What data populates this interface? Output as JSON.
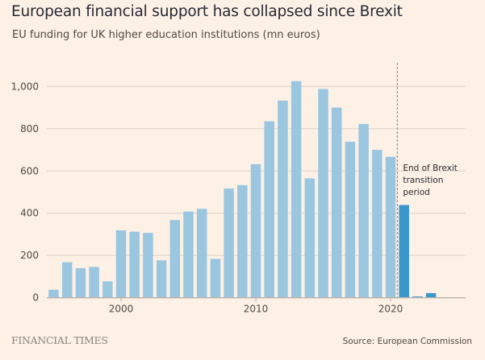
{
  "header": {
    "title": "European financial support has collapsed since Brexit",
    "subtitle": "EU funding for UK higher education institutions (mn euros)"
  },
  "footer": {
    "brand": "FINANCIAL TIMES",
    "source": "Source: European Commission"
  },
  "colors": {
    "background": "#fdf1e6",
    "bar": "#9ac6e0",
    "bar_highlight": "#3a97cd",
    "gridline": "#e0d6cc",
    "axis": "#b8b0a8",
    "marker_line": "#8a8583"
  },
  "chart_data": {
    "type": "bar",
    "title": "European financial support has collapsed since Brexit",
    "subtitle": "EU funding for UK higher education institutions (mn euros)",
    "xlabel": "",
    "ylabel": "",
    "categories": [
      1995,
      1996,
      1997,
      1998,
      1999,
      2000,
      2001,
      2002,
      2003,
      2004,
      2005,
      2006,
      2007,
      2008,
      2009,
      2010,
      2011,
      2012,
      2013,
      2014,
      2015,
      2016,
      2017,
      2018,
      2019,
      2020,
      2021,
      2022,
      2023
    ],
    "values": [
      38,
      168,
      140,
      146,
      78,
      319,
      313,
      307,
      177,
      368,
      408,
      421,
      184,
      517,
      533,
      632,
      835,
      933,
      1025,
      565,
      988,
      900,
      738,
      822,
      700,
      667,
      439,
      6,
      22
    ],
    "highlight_from": 2021,
    "ylim": [
      0,
      1000
    ],
    "xlim": [
      1994.5,
      2025.5
    ],
    "yticks": [
      0,
      200,
      400,
      600,
      800,
      1000
    ],
    "ytick_labels": [
      "0",
      "200",
      "400",
      "600",
      "800",
      "1,000"
    ],
    "xticks": [
      2000,
      2010,
      2020
    ],
    "xtick_labels": [
      "2000",
      "2010",
      "2020"
    ],
    "grid": true,
    "annotation": {
      "x": 2020.5,
      "style": "dashed-vertical-line",
      "lines": [
        "End of Brexit",
        "transition",
        "period"
      ]
    }
  }
}
